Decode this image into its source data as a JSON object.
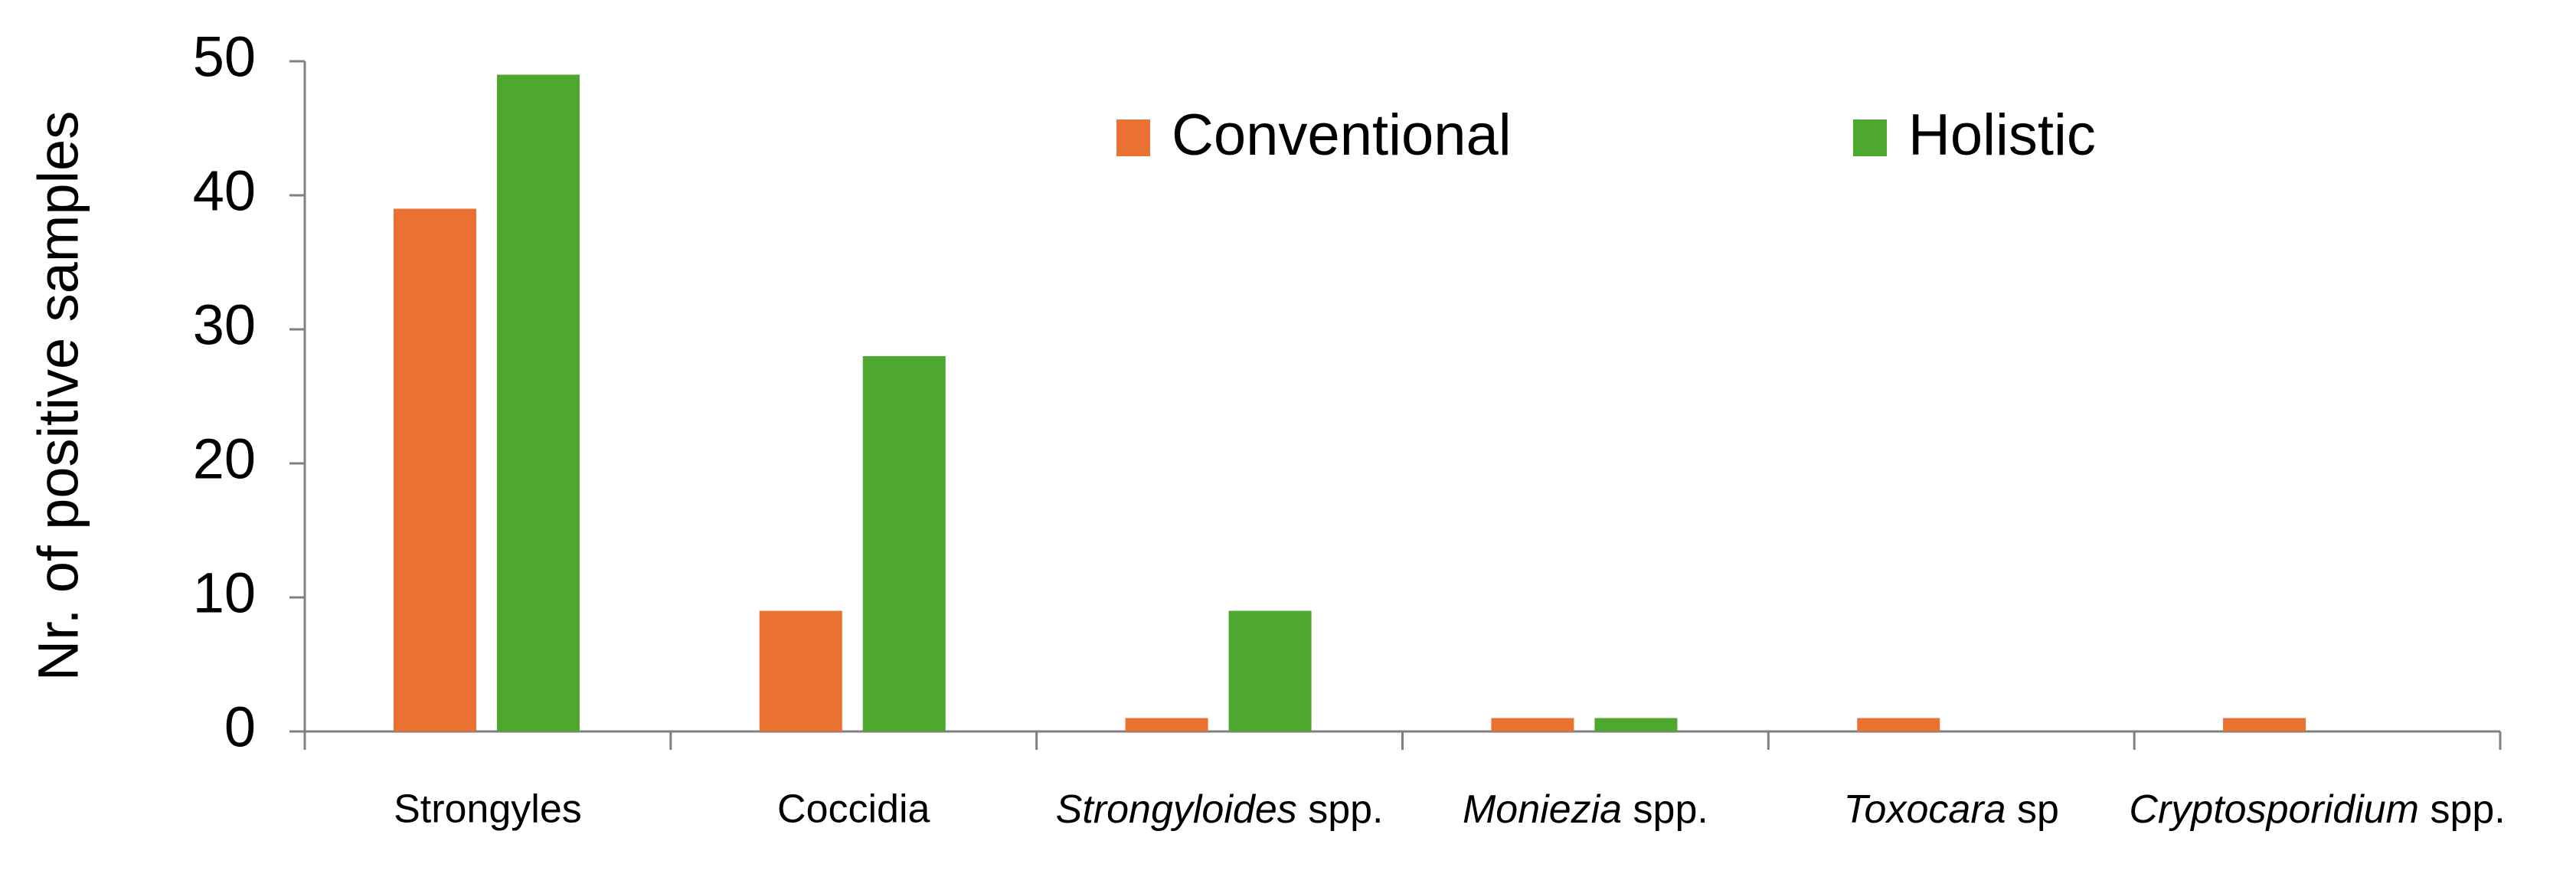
{
  "chart_data": {
    "type": "bar",
    "y_label": "Nr. of positive samples",
    "categories": [
      "Strongyles",
      "Coccidia",
      "Strongyloides spp.",
      "Moniezia spp.",
      "Toxocara sp",
      "Cryptosporidium spp."
    ],
    "italic_genus": [
      false,
      false,
      true,
      true,
      true,
      true
    ],
    "series": [
      {
        "name": "Conventional",
        "color": "#e97132",
        "values": [
          39,
          9,
          1,
          1,
          1,
          1
        ]
      },
      {
        "name": "Holistic",
        "color": "#4ea72e",
        "values": [
          49,
          28,
          9,
          1,
          0,
          0
        ]
      }
    ],
    "ylim": [
      0,
      50
    ],
    "yticks": [
      0,
      10,
      20,
      30,
      40,
      50
    ],
    "grid": false,
    "legend": "top"
  }
}
